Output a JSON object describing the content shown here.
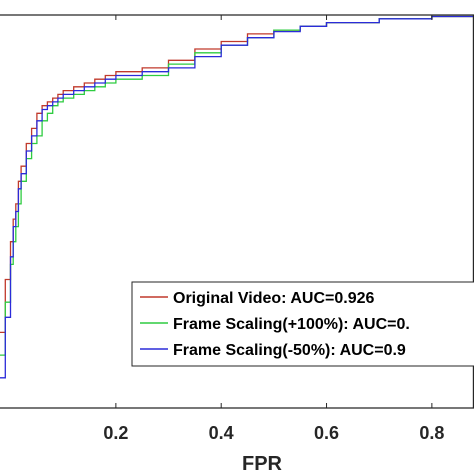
{
  "chart_data": {
    "type": "line",
    "title": "",
    "xlabel": "FPR",
    "ylabel": "",
    "xlim": [
      -0.02,
      0.88
    ],
    "ylim": [
      0.48,
      1.0
    ],
    "xticks": [
      0.2,
      0.4,
      0.6,
      0.8
    ],
    "xtick_labels": [
      "0.2",
      "0.4",
      "0.6",
      "0.8"
    ],
    "grid": false,
    "legend_position": "bottom-right",
    "series": [
      {
        "name": "Original Video: AUC=0.926",
        "color": "#c0392b",
        "x": [
          -0.02,
          -0.01,
          0.0,
          0.005,
          0.01,
          0.015,
          0.02,
          0.03,
          0.04,
          0.05,
          0.06,
          0.07,
          0.08,
          0.09,
          0.1,
          0.12,
          0.14,
          0.16,
          0.18,
          0.2,
          0.25,
          0.3,
          0.35,
          0.4,
          0.45,
          0.5,
          0.55,
          0.6,
          0.7,
          0.8,
          0.88
        ],
        "y": [
          0.58,
          0.65,
          0.7,
          0.73,
          0.75,
          0.78,
          0.8,
          0.83,
          0.85,
          0.87,
          0.88,
          0.885,
          0.89,
          0.895,
          0.9,
          0.905,
          0.91,
          0.915,
          0.92,
          0.925,
          0.93,
          0.94,
          0.955,
          0.965,
          0.975,
          0.98,
          0.985,
          0.99,
          0.995,
          0.998,
          1.0
        ]
      },
      {
        "name": "Frame Scaling(+100%): AUC=0.",
        "color": "#2ecc40",
        "x": [
          -0.02,
          -0.01,
          0.0,
          0.005,
          0.01,
          0.015,
          0.02,
          0.03,
          0.04,
          0.05,
          0.06,
          0.07,
          0.08,
          0.09,
          0.1,
          0.12,
          0.14,
          0.16,
          0.18,
          0.2,
          0.25,
          0.3,
          0.35,
          0.4,
          0.45,
          0.5,
          0.55,
          0.6,
          0.7,
          0.8,
          0.88
        ],
        "y": [
          0.55,
          0.62,
          0.67,
          0.7,
          0.72,
          0.75,
          0.78,
          0.81,
          0.83,
          0.84,
          0.86,
          0.87,
          0.88,
          0.885,
          0.89,
          0.895,
          0.9,
          0.905,
          0.91,
          0.915,
          0.92,
          0.935,
          0.95,
          0.96,
          0.97,
          0.98,
          0.985,
          0.99,
          0.995,
          0.998,
          1.0
        ]
      },
      {
        "name": "Frame Scaling(-50%): AUC=0.9",
        "color": "#2b2bd9",
        "x": [
          -0.02,
          -0.01,
          0.0,
          0.005,
          0.01,
          0.015,
          0.02,
          0.03,
          0.04,
          0.05,
          0.06,
          0.07,
          0.08,
          0.09,
          0.1,
          0.12,
          0.14,
          0.16,
          0.18,
          0.2,
          0.25,
          0.3,
          0.35,
          0.4,
          0.45,
          0.5,
          0.55,
          0.6,
          0.7,
          0.8,
          0.88
        ],
        "y": [
          0.52,
          0.6,
          0.68,
          0.72,
          0.74,
          0.77,
          0.79,
          0.82,
          0.84,
          0.86,
          0.875,
          0.88,
          0.885,
          0.89,
          0.895,
          0.9,
          0.905,
          0.91,
          0.915,
          0.92,
          0.925,
          0.93,
          0.945,
          0.96,
          0.97,
          0.978,
          0.985,
          0.99,
          0.995,
          0.998,
          1.0
        ]
      }
    ]
  }
}
